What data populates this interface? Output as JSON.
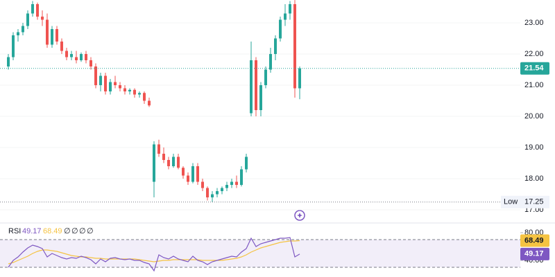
{
  "chart_data": [
    {
      "type": "candlestick",
      "open": [
        21.6,
        21.9,
        22.6,
        22.7,
        22.9,
        23.3,
        23.6,
        23.2,
        23.1,
        22.3,
        22.8,
        22.4,
        22.1,
        21.9,
        21.9,
        21.8,
        22.0,
        21.8,
        21.6,
        21.0,
        21.3,
        20.8,
        21.1,
        21.0,
        20.9,
        20.8,
        20.85,
        20.7,
        20.75,
        20.5,
        17.9,
        19.1,
        18.8,
        18.6,
        18.4,
        18.7,
        18.35,
        18.1,
        17.9,
        18.4,
        17.9,
        17.7,
        17.4,
        17.5,
        17.6,
        17.7,
        17.8,
        17.9,
        17.8,
        18.3,
        20.1,
        21.8,
        20.2,
        21.0,
        21.5,
        22.0,
        22.5,
        23.1,
        23.3,
        23.6,
        20.9
      ],
      "high": [
        22.0,
        22.7,
        22.8,
        23.0,
        23.4,
        23.7,
        23.65,
        23.4,
        23.3,
        22.9,
        22.9,
        22.5,
        22.2,
        22.1,
        22.1,
        22.05,
        22.1,
        21.9,
        21.7,
        21.4,
        21.4,
        21.2,
        21.3,
        21.1,
        21.0,
        20.9,
        20.9,
        20.8,
        20.8,
        20.6,
        19.2,
        19.25,
        19.0,
        18.7,
        18.8,
        18.8,
        18.4,
        18.2,
        18.5,
        18.5,
        18.0,
        17.75,
        17.6,
        17.7,
        17.75,
        17.9,
        18.0,
        18.1,
        18.4,
        18.8,
        22.4,
        21.9,
        21.1,
        21.6,
        22.2,
        22.6,
        23.2,
        23.6,
        23.7,
        23.73,
        21.6
      ],
      "low": [
        21.5,
        21.8,
        22.4,
        22.6,
        22.8,
        23.2,
        23.1,
        22.9,
        22.2,
        22.2,
        22.3,
        22.0,
        21.8,
        21.8,
        21.7,
        21.75,
        21.7,
        21.5,
        20.9,
        20.8,
        20.7,
        20.7,
        20.9,
        20.8,
        20.7,
        20.7,
        20.6,
        20.6,
        20.4,
        20.3,
        17.4,
        18.7,
        18.5,
        18.3,
        18.35,
        18.3,
        18.0,
        17.8,
        17.85,
        17.8,
        17.6,
        17.3,
        17.25,
        17.4,
        17.5,
        17.6,
        17.7,
        17.7,
        17.75,
        18.2,
        20.0,
        20.0,
        20.0,
        20.9,
        21.4,
        21.8,
        22.4,
        22.9,
        23.1,
        20.6,
        20.55
      ],
      "close": [
        21.9,
        22.6,
        22.7,
        22.9,
        23.3,
        23.6,
        23.2,
        23.1,
        22.3,
        22.8,
        22.4,
        22.1,
        21.9,
        22.0,
        21.8,
        22.0,
        21.8,
        21.6,
        21.0,
        21.3,
        20.8,
        21.1,
        21.0,
        20.9,
        20.8,
        20.85,
        20.7,
        20.75,
        20.5,
        20.35,
        19.1,
        18.8,
        18.6,
        18.4,
        18.7,
        18.35,
        18.1,
        17.9,
        18.4,
        17.9,
        17.7,
        17.4,
        17.5,
        17.6,
        17.7,
        17.8,
        17.9,
        17.8,
        18.3,
        18.7,
        21.8,
        20.2,
        21.0,
        21.5,
        22.0,
        22.5,
        23.1,
        23.3,
        23.6,
        20.9,
        21.54
      ],
      "up_color": "#26a69a",
      "down_color": "#ef5350",
      "ylim": [
        16.667,
        23.733
      ],
      "yticks": [
        {
          "value": 17,
          "label": "17.00"
        },
        {
          "value": 18,
          "label": "18.00"
        },
        {
          "value": 19,
          "label": "19.00"
        },
        {
          "value": 20,
          "label": "20.00"
        },
        {
          "value": 21,
          "label": "21.00"
        },
        {
          "value": 22,
          "label": "22.00"
        },
        {
          "value": 23,
          "label": "23.00"
        }
      ],
      "low_label": "Low"
    },
    {
      "type": "line",
      "title": "RSI",
      "placeholders": [
        "∅",
        "∅",
        "∅",
        "∅"
      ],
      "series": [
        {
          "color": "#7e57c2",
          "values": [
            30,
            40,
            45,
            52,
            58,
            62,
            60,
            57,
            45,
            50,
            47,
            44,
            42,
            44,
            43,
            46,
            44,
            41,
            35,
            42,
            38,
            43,
            44,
            42,
            41,
            42,
            40,
            40,
            37,
            35,
            25,
            48,
            44,
            42,
            46,
            42,
            40,
            38,
            46,
            40,
            38,
            34,
            38,
            40,
            42,
            44,
            46,
            45,
            52,
            57,
            72,
            60,
            64,
            66,
            68,
            70,
            72,
            72,
            73,
            45,
            49.17
          ]
        },
        {
          "color": "#f5c342",
          "values": [
            35,
            37,
            40,
            43,
            46,
            50,
            53,
            55,
            55,
            54,
            53,
            51,
            49,
            47,
            46,
            45,
            45,
            44,
            43,
            43,
            42,
            42,
            42,
            42,
            42,
            42,
            42,
            41,
            40,
            39,
            38,
            39,
            40,
            40,
            41,
            41,
            41,
            41,
            41,
            41,
            40,
            40,
            40,
            40,
            40,
            41,
            42,
            43,
            45,
            48,
            52,
            55,
            58,
            60,
            62,
            64,
            66,
            67,
            68,
            68,
            68.49
          ]
        }
      ],
      "band": [
        30,
        70
      ],
      "band_color": "#7e57c2",
      "ylim": [
        16,
        90
      ],
      "yticks": [
        {
          "value": 40,
          "label": "40.00"
        },
        {
          "value": 80,
          "label": "80.00"
        }
      ]
    }
  ]
}
